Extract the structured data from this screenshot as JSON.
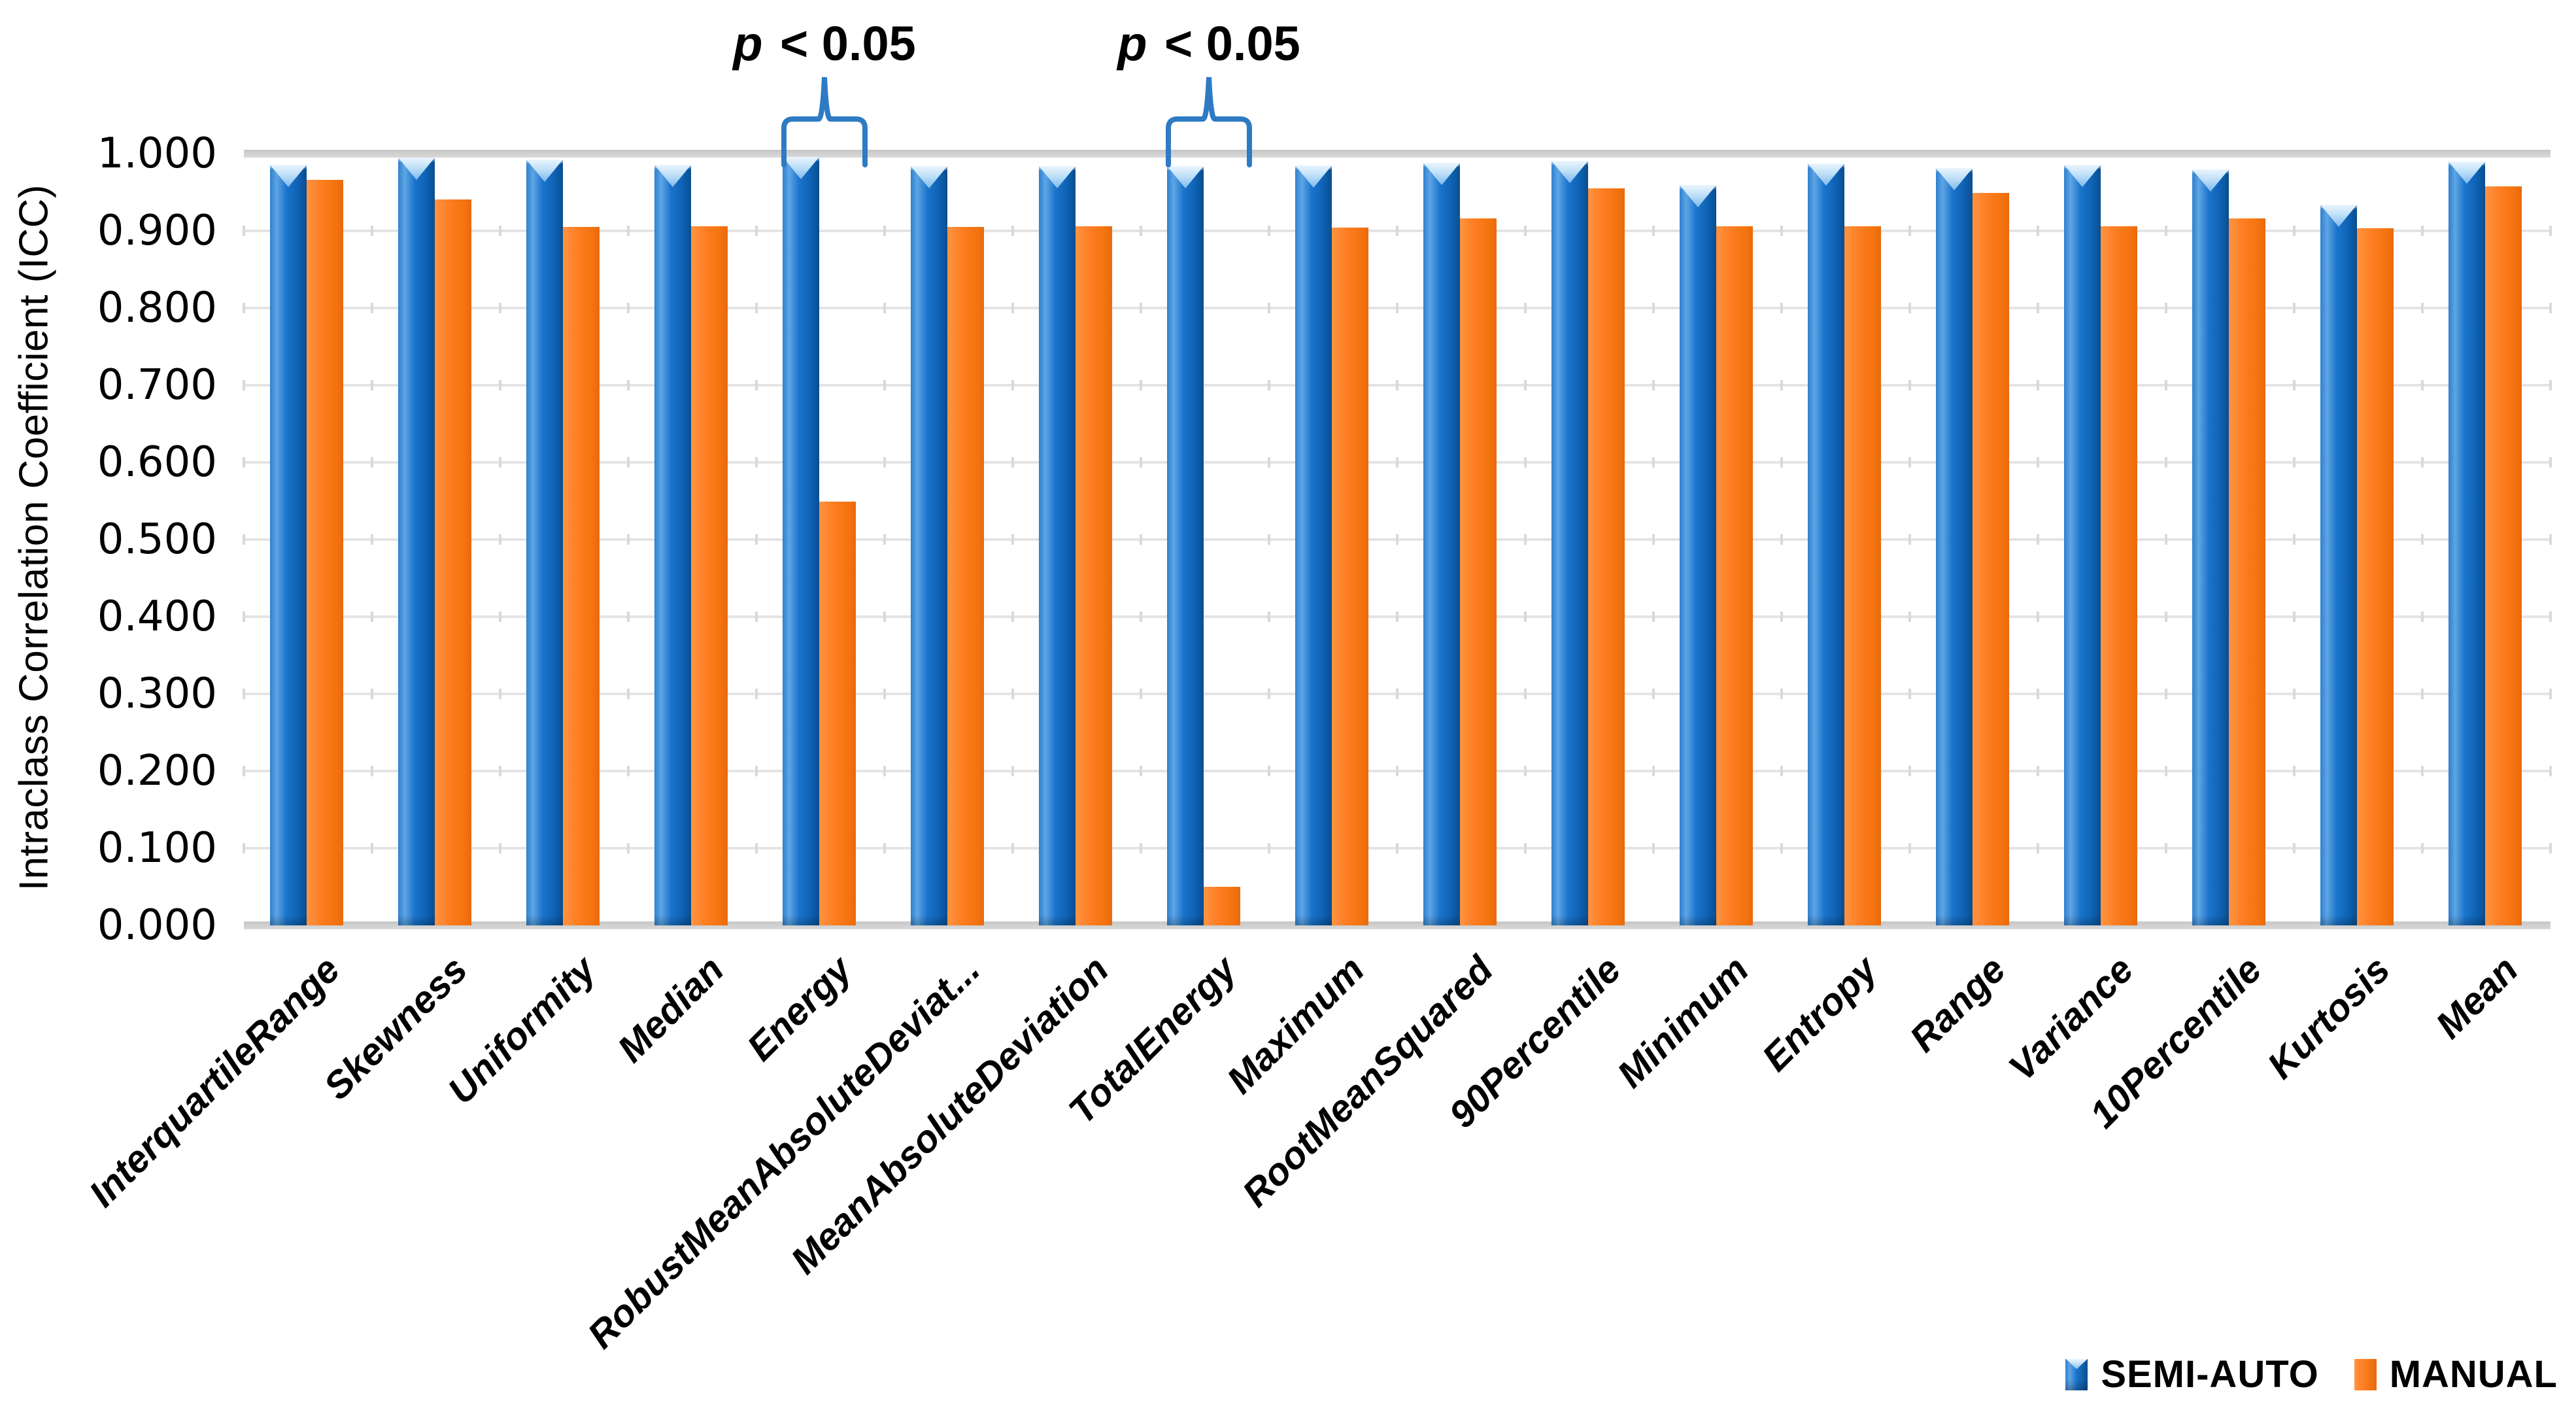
{
  "chart_data": {
    "type": "bar",
    "title": "",
    "xlabel": "",
    "ylabel": "Intraclass Correlation Coefficient (ICC)",
    "ylim": [
      0.0,
      1.0
    ],
    "ytick_step": 0.1,
    "ytick_labels": [
      "1.000",
      "0.900",
      "0.800",
      "0.700",
      "0.600",
      "0.500",
      "0.400",
      "0.300",
      "0.200",
      "0.100",
      "0.000"
    ],
    "grid": true,
    "legend_position": "bottom-right",
    "categories": [
      "InterquartileRange",
      "Skewness",
      "Uniformity",
      "Median",
      "Energy",
      "RobustMeanAbsoluteDeviat...",
      "MeanAbsoluteDeviation",
      "TotalEnergy",
      "Maximum",
      "RootMeanSquared",
      "90Percentile",
      "Minimum",
      "Entropy",
      "Range",
      "Variance",
      "10Percentile",
      "Kurtosis",
      "Mean"
    ],
    "series": [
      {
        "name": "SEMI-AUTO",
        "color": "#1B74CC",
        "values": [
          0.986,
          0.995,
          0.992,
          0.986,
          0.996,
          0.984,
          0.984,
          0.984,
          0.985,
          0.988,
          0.991,
          0.959,
          0.987,
          0.981,
          0.986,
          0.98,
          0.934,
          0.99
        ]
      },
      {
        "name": "MANUAL",
        "color": "#FD7E22",
        "values": [
          0.966,
          0.941,
          0.905,
          0.906,
          0.549,
          0.905,
          0.906,
          0.05,
          0.904,
          0.916,
          0.955,
          0.906,
          0.906,
          0.949,
          0.906,
          0.916,
          0.903,
          0.958
        ]
      }
    ],
    "annotations": [
      {
        "text": "p < 0.05",
        "category": "Energy",
        "category_index": 4
      },
      {
        "text": "p < 0.05",
        "category": "TotalEnergy",
        "category_index": 7
      }
    ]
  },
  "colors": {
    "semi_auto_bar": "#1B74CC",
    "manual_bar": "#FD7E22",
    "brace": "#2E7BC4",
    "gridline": "#E4E4E4",
    "axis_band": "#CBCBCB",
    "text": "#000000"
  }
}
